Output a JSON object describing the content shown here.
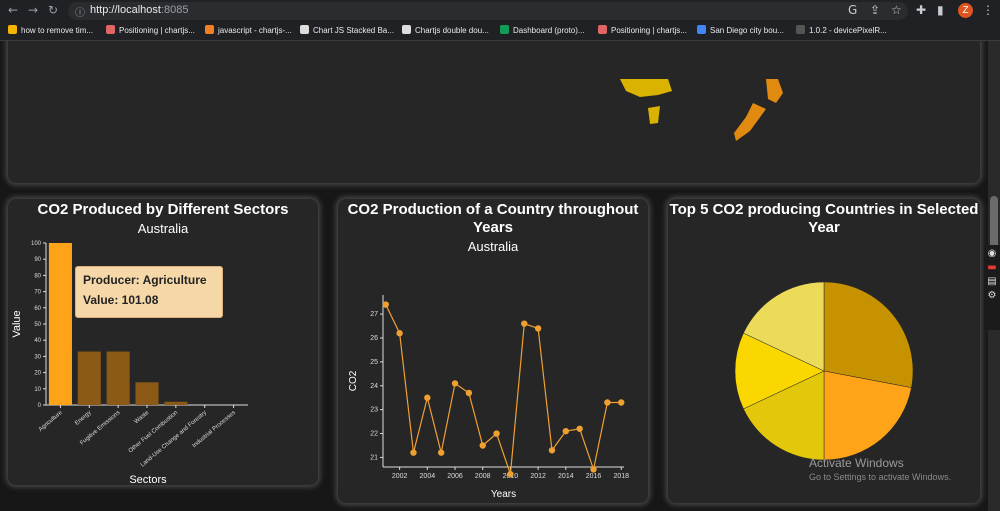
{
  "browser": {
    "url_host": "http://localhost",
    "url_rest": ":8085",
    "avatar_letter": "Z",
    "bookmarks": [
      {
        "label": "how to remove tim...",
        "color": "#f4b400"
      },
      {
        "label": "Positioning | chartjs...",
        "color": "#e06666"
      },
      {
        "label": "javascript - chartjs-...",
        "color": "#f48024"
      },
      {
        "label": "Chart JS Stacked Ba...",
        "color": "#dddddd"
      },
      {
        "label": "Chartjs double dou...",
        "color": "#dddddd"
      },
      {
        "label": "Dashboard (proto)...",
        "color": "#0f9d58"
      },
      {
        "label": "Positioning | chartjs...",
        "color": "#e06666"
      },
      {
        "label": "San Diego city bou...",
        "color": "#4285f4"
      },
      {
        "label": "1.0.2 - devicePixelR...",
        "color": "#555555"
      }
    ]
  },
  "sectors_card": {
    "title": "CO2 Produced by Different Sectors",
    "subtitle": "Australia",
    "tooltip": {
      "producer_line": "Producer: Agriculture",
      "value_line": "Value: 101.08"
    }
  },
  "country_card": {
    "title_line1": "CO2 Production of a Country throughout",
    "title_line2": "Years",
    "subtitle": "Australia"
  },
  "top5_card": {
    "title_line1": "Top 5 CO2 producing Countries in Selected",
    "title_line2": "Year"
  },
  "watermark": {
    "line1": "Activate Windows",
    "line2": "Go to Settings to activate Windows."
  },
  "chart_data": [
    {
      "type": "bar",
      "xlabel": "Sectors",
      "ylabel": "Value",
      "ylim": [
        0,
        100
      ],
      "yticks": [
        0,
        10,
        20,
        30,
        40,
        50,
        60,
        70,
        80,
        90,
        100
      ],
      "categories": [
        "Agriculture",
        "Energy",
        "Fugitive Emissions",
        "Waste",
        "Other Fuel Combustion",
        "Land-Use Change and Forestry",
        "Industrial Processes"
      ],
      "values": [
        101.08,
        33,
        33,
        14,
        2,
        0,
        0
      ],
      "colors": [
        "#ffa319",
        "#8a5a16",
        "#8a5a16",
        "#8a5a16",
        "#8a5a16",
        "#8a5a16",
        "#8a5a16"
      ]
    },
    {
      "type": "line",
      "xlabel": "Years",
      "ylabel": "CO2",
      "ylim": [
        20.6,
        27.8
      ],
      "yticks": [
        21,
        22,
        23,
        24,
        25,
        26,
        27
      ],
      "xlim": [
        2000.8,
        2018.2
      ],
      "xticks": [
        2002,
        2004,
        2006,
        2008,
        2010,
        2012,
        2014,
        2016,
        2018
      ],
      "color": "#f0a030",
      "x": [
        2001,
        2002,
        2003,
        2004,
        2005,
        2006,
        2007,
        2008,
        2009,
        2010,
        2011,
        2012,
        2013,
        2014,
        2015,
        2016,
        2017,
        2018
      ],
      "y": [
        27.4,
        26.2,
        21.2,
        23.5,
        21.2,
        24.1,
        23.7,
        21.5,
        22.0,
        20.3,
        26.6,
        26.4,
        21.3,
        22.1,
        22.2,
        20.5,
        23.3,
        23.3
      ]
    },
    {
      "type": "pie",
      "values": [
        28,
        22,
        18,
        14,
        18
      ],
      "colors": [
        "#c69200",
        "#ffa319",
        "#e3c70b",
        "#fad700",
        "#ecdb58"
      ]
    }
  ]
}
